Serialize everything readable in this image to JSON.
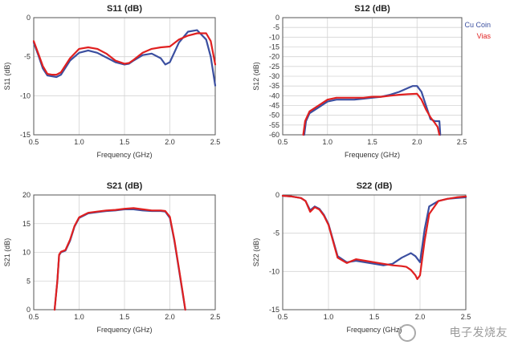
{
  "chart_data": [
    {
      "type": "line",
      "title": "S11 (dB)",
      "xlabel": "Frequency (GHz)",
      "ylabel": "S11 (dB)",
      "xlim": [
        0.5,
        2.5
      ],
      "ylim": [
        -15,
        0
      ],
      "xticks": [
        0.5,
        1.0,
        1.5,
        2.0,
        2.5
      ],
      "xtick_labels": [
        "0.5",
        "1.0",
        "1.5",
        "2.0",
        "2.5"
      ],
      "yticks": [
        -15,
        -10,
        -5,
        0
      ],
      "ytick_labels": [
        "-15",
        "-10",
        "-5",
        "0"
      ],
      "grid": true,
      "legend": false,
      "series": [
        {
          "color": "#3b4fa0",
          "x": [
            0.5,
            0.55,
            0.6,
            0.65,
            0.7,
            0.75,
            0.8,
            0.9,
            1.0,
            1.1,
            1.2,
            1.3,
            1.4,
            1.5,
            1.55,
            1.6,
            1.7,
            1.8,
            1.9,
            1.95,
            2.0,
            2.1,
            2.2,
            2.3,
            2.4,
            2.45,
            2.5
          ],
          "y": [
            -3.2,
            -4.8,
            -6.5,
            -7.4,
            -7.5,
            -7.6,
            -7.3,
            -5.5,
            -4.5,
            -4.2,
            -4.5,
            -5.1,
            -5.7,
            -6.0,
            -5.9,
            -5.5,
            -4.8,
            -4.6,
            -5.2,
            -6.0,
            -5.7,
            -3.2,
            -1.8,
            -1.6,
            -2.8,
            -5.0,
            -8.7
          ]
        },
        {
          "color": "#e02020",
          "x": [
            0.5,
            0.55,
            0.6,
            0.65,
            0.7,
            0.75,
            0.8,
            0.9,
            1.0,
            1.1,
            1.2,
            1.3,
            1.4,
            1.5,
            1.55,
            1.6,
            1.7,
            1.8,
            1.9,
            2.0,
            2.1,
            2.2,
            2.3,
            2.4,
            2.45,
            2.5
          ],
          "y": [
            -3.0,
            -4.6,
            -6.2,
            -7.2,
            -7.3,
            -7.3,
            -7.0,
            -5.2,
            -4.0,
            -3.8,
            -4.0,
            -4.6,
            -5.5,
            -5.9,
            -5.8,
            -5.4,
            -4.5,
            -4.0,
            -3.8,
            -3.7,
            -2.8,
            -2.3,
            -2.0,
            -2.0,
            -3.0,
            -6.0
          ]
        }
      ]
    },
    {
      "type": "line",
      "title": "S12 (dB)",
      "xlabel": "Frequency (GHz)",
      "ylabel": "S12 (dB)",
      "xlim": [
        0.5,
        2.5
      ],
      "ylim": [
        -60,
        0
      ],
      "xticks": [
        0.5,
        1.0,
        1.5,
        2.0,
        2.5
      ],
      "xtick_labels": [
        "0.5",
        "1.0",
        "1.5",
        "2.0",
        "2.5"
      ],
      "yticks": [
        -60,
        -55,
        -50,
        -45,
        -40,
        -35,
        -30,
        -25,
        -20,
        -15,
        -10,
        -5,
        0
      ],
      "ytick_labels": [
        "-60",
        "-55",
        "-50",
        "-45",
        "-40",
        "-35",
        "-30",
        "-25",
        "-20",
        "-15",
        "-10",
        "-5",
        "0"
      ],
      "grid": true,
      "legend_position": "top-right",
      "series": [
        {
          "name": "Cu Coin",
          "color": "#3b4fa0",
          "x": [
            0.74,
            0.76,
            0.8,
            0.9,
            1.0,
            1.1,
            1.2,
            1.3,
            1.4,
            1.5,
            1.6,
            1.7,
            1.8,
            1.9,
            1.95,
            2.0,
            2.05,
            2.1,
            2.15,
            2.2,
            2.25,
            2.26
          ],
          "y": [
            -60,
            -53,
            -49,
            -46,
            -43,
            -42,
            -42,
            -42,
            -41.5,
            -41,
            -40.5,
            -39.5,
            -38,
            -36,
            -35,
            -35,
            -38,
            -45,
            -52,
            -53,
            -53,
            -60
          ]
        },
        {
          "name": "Vias",
          "color": "#e02020",
          "x": [
            0.73,
            0.75,
            0.8,
            0.9,
            1.0,
            1.1,
            1.2,
            1.3,
            1.4,
            1.5,
            1.6,
            1.7,
            1.8,
            1.9,
            2.0,
            2.05,
            2.1,
            2.15,
            2.2,
            2.23,
            2.25
          ],
          "y": [
            -60,
            -53,
            -48,
            -45,
            -42,
            -41,
            -41,
            -41,
            -41,
            -40.5,
            -40.5,
            -40,
            -39.5,
            -39.2,
            -39,
            -42,
            -47,
            -51,
            -54,
            -56,
            -60
          ]
        }
      ]
    },
    {
      "type": "line",
      "title": "S21 (dB)",
      "xlabel": "Frequency (GHz)",
      "ylabel": "S21 (dB)",
      "xlim": [
        0.5,
        2.5
      ],
      "ylim": [
        0,
        20
      ],
      "xticks": [
        0.5,
        1.0,
        1.5,
        2.0,
        2.5
      ],
      "xtick_labels": [
        "0.5",
        "1.0",
        "1.5",
        "2.0",
        "2.5"
      ],
      "yticks": [
        0,
        5,
        10,
        15,
        20
      ],
      "ytick_labels": [
        "0",
        "5",
        "10",
        "15",
        "20"
      ],
      "grid": true,
      "legend": false,
      "series": [
        {
          "color": "#3b4fa0",
          "x": [
            0.73,
            0.76,
            0.78,
            0.8,
            0.85,
            0.9,
            0.95,
            1.0,
            1.1,
            1.2,
            1.3,
            1.4,
            1.5,
            1.6,
            1.7,
            1.8,
            1.9,
            1.95,
            2.0,
            2.05,
            2.1,
            2.15,
            2.17
          ],
          "y": [
            0,
            5,
            9.5,
            10,
            10.3,
            12,
            14.5,
            16,
            16.8,
            17,
            17.2,
            17.3,
            17.5,
            17.5,
            17.3,
            17.2,
            17.2,
            17.1,
            16,
            12,
            7,
            2,
            0
          ]
        },
        {
          "color": "#e02020",
          "x": [
            0.73,
            0.76,
            0.78,
            0.8,
            0.85,
            0.9,
            0.95,
            1.0,
            1.1,
            1.2,
            1.3,
            1.4,
            1.5,
            1.6,
            1.7,
            1.8,
            1.9,
            1.95,
            2.0,
            2.05,
            2.1,
            2.15,
            2.17
          ],
          "y": [
            0,
            5,
            9.6,
            10.1,
            10.4,
            12.2,
            14.6,
            16.1,
            16.9,
            17.1,
            17.3,
            17.4,
            17.6,
            17.7,
            17.5,
            17.3,
            17.3,
            17.2,
            16.2,
            12.2,
            7.2,
            2.2,
            0
          ]
        }
      ]
    },
    {
      "type": "line",
      "title": "S22 (dB)",
      "xlabel": "Frequency (GHz)",
      "ylabel": "S22 (dB)",
      "xlim": [
        0.5,
        2.5
      ],
      "ylim": [
        -15,
        0
      ],
      "xticks": [
        0.5,
        1.0,
        1.5,
        2.0,
        2.5
      ],
      "xtick_labels": [
        "0.5",
        "1.0",
        "1.5",
        "2.0",
        "2.5"
      ],
      "yticks": [
        -15,
        -10,
        -5,
        0
      ],
      "ytick_labels": [
        "-15",
        "-10",
        "-5",
        "0"
      ],
      "grid": true,
      "legend": false,
      "series": [
        {
          "color": "#3b4fa0",
          "x": [
            0.5,
            0.6,
            0.7,
            0.75,
            0.8,
            0.85,
            0.9,
            0.95,
            1.0,
            1.1,
            1.2,
            1.3,
            1.4,
            1.5,
            1.6,
            1.7,
            1.8,
            1.9,
            1.95,
            2.0,
            2.05,
            2.1,
            2.2,
            2.3,
            2.4,
            2.5
          ],
          "y": [
            -0.1,
            -0.2,
            -0.4,
            -0.8,
            -2.0,
            -1.5,
            -1.8,
            -2.6,
            -3.8,
            -8.0,
            -8.8,
            -8.6,
            -8.8,
            -9.0,
            -9.2,
            -9.0,
            -8.2,
            -7.6,
            -8.0,
            -8.8,
            -4.5,
            -1.5,
            -0.8,
            -0.5,
            -0.4,
            -0.3
          ]
        },
        {
          "color": "#e02020",
          "x": [
            0.5,
            0.6,
            0.7,
            0.75,
            0.8,
            0.85,
            0.9,
            0.95,
            1.0,
            1.1,
            1.2,
            1.3,
            1.4,
            1.5,
            1.6,
            1.7,
            1.8,
            1.85,
            1.9,
            1.95,
            1.97,
            2.0,
            2.05,
            2.1,
            2.2,
            2.3,
            2.4,
            2.5
          ],
          "y": [
            -0.1,
            -0.2,
            -0.4,
            -0.8,
            -2.2,
            -1.6,
            -1.9,
            -2.7,
            -3.9,
            -8.2,
            -8.9,
            -8.4,
            -8.6,
            -8.8,
            -9.0,
            -9.2,
            -9.3,
            -9.4,
            -9.8,
            -10.5,
            -11.0,
            -10.5,
            -6.0,
            -2.5,
            -0.8,
            -0.5,
            -0.3,
            -0.2
          ]
        }
      ]
    }
  ],
  "watermark": {
    "text": "电子发烧友",
    "logo": "fan-logo-icon"
  }
}
